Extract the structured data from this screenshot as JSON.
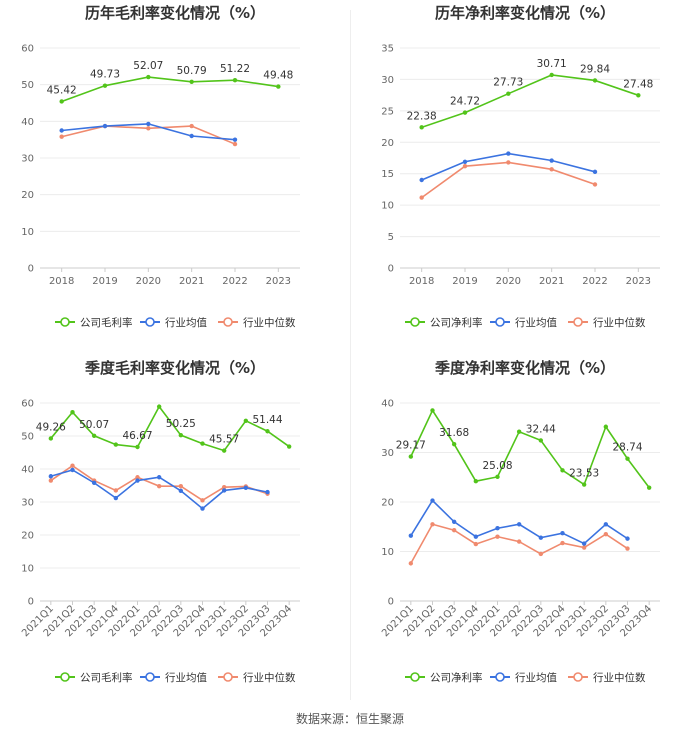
{
  "source_label": "数据来源：恒生聚源",
  "colors": {
    "company": "#52c41a",
    "avg": "#3b73e0",
    "median": "#f08a6e"
  },
  "chart_data": [
    {
      "type": "line",
      "title": "历年毛利率变化情况（%）",
      "categories": [
        "2018",
        "2019",
        "2020",
        "2021",
        "2022",
        "2023"
      ],
      "ylim": [
        0,
        60
      ],
      "yticks": [
        0,
        10,
        20,
        30,
        40,
        50,
        60
      ],
      "series": [
        {
          "name": "公司毛利率",
          "key": "company",
          "values": [
            45.42,
            49.73,
            52.07,
            50.79,
            51.22,
            49.48
          ]
        },
        {
          "name": "行业均值",
          "key": "avg",
          "values": [
            37.5,
            38.7,
            39.3,
            36.0,
            35.0,
            null
          ]
        },
        {
          "name": "行业中位数",
          "key": "median",
          "values": [
            35.8,
            38.7,
            38.1,
            38.7,
            33.8,
            null
          ]
        }
      ],
      "data_labels": [
        "45.42",
        "49.73",
        "52.07",
        "50.79",
        "51.22",
        "49.48"
      ]
    },
    {
      "type": "line",
      "title": "历年净利率变化情况（%）",
      "categories": [
        "2018",
        "2019",
        "2020",
        "2021",
        "2022",
        "2023"
      ],
      "ylim": [
        0,
        35
      ],
      "yticks": [
        0,
        5,
        10,
        15,
        20,
        25,
        30,
        35
      ],
      "series": [
        {
          "name": "公司净利率",
          "key": "company",
          "values": [
            22.38,
            24.72,
            27.73,
            30.71,
            29.84,
            27.48
          ]
        },
        {
          "name": "行业均值",
          "key": "avg",
          "values": [
            14.0,
            16.9,
            18.2,
            17.1,
            15.3,
            null
          ]
        },
        {
          "name": "行业中位数",
          "key": "median",
          "values": [
            11.2,
            16.2,
            16.8,
            15.7,
            13.3,
            null
          ]
        }
      ],
      "data_labels": [
        "22.38",
        "24.72",
        "27.73",
        "30.71",
        "29.84",
        "27.48"
      ]
    },
    {
      "type": "line",
      "title": "季度毛利率变化情况（%）",
      "categories": [
        "2021Q1",
        "2021Q2",
        "2021Q3",
        "2021Q4",
        "2022Q1",
        "2022Q2",
        "2022Q3",
        "2022Q4",
        "2023Q1",
        "2023Q2",
        "2023Q3",
        "2023Q4"
      ],
      "ylim": [
        0,
        60
      ],
      "yticks": [
        0,
        10,
        20,
        30,
        40,
        50,
        60
      ],
      "series": [
        {
          "name": "公司毛利率",
          "key": "company",
          "values": [
            49.26,
            57.2,
            50.07,
            47.4,
            46.67,
            58.9,
            50.25,
            47.7,
            45.57,
            54.6,
            51.44,
            46.8
          ]
        },
        {
          "name": "行业均值",
          "key": "avg",
          "values": [
            37.8,
            39.7,
            35.8,
            31.2,
            36.5,
            37.5,
            33.4,
            28.0,
            33.5,
            34.3,
            33.0,
            null
          ]
        },
        {
          "name": "行业中位数",
          "key": "median",
          "values": [
            36.5,
            41.0,
            36.5,
            33.5,
            37.5,
            34.8,
            34.8,
            30.5,
            34.5,
            34.7,
            32.5,
            null
          ]
        }
      ],
      "data_labels": [
        "49.26",
        "",
        "50.07",
        "",
        "46.67",
        "",
        "50.25",
        "",
        "45.57",
        "",
        "51.44",
        ""
      ]
    },
    {
      "type": "line",
      "title": "季度净利率变化情况（%）",
      "categories": [
        "2021Q1",
        "2021Q2",
        "2021Q3",
        "2021Q4",
        "2022Q1",
        "2022Q2",
        "2022Q3",
        "2022Q4",
        "2023Q1",
        "2023Q2",
        "2023Q3",
        "2023Q4"
      ],
      "ylim": [
        0,
        40
      ],
      "yticks": [
        0,
        10,
        20,
        30,
        40
      ],
      "series": [
        {
          "name": "公司净利率",
          "key": "company",
          "values": [
            29.17,
            38.5,
            31.68,
            24.2,
            25.08,
            34.2,
            32.44,
            26.4,
            23.53,
            35.2,
            28.74,
            22.9
          ]
        },
        {
          "name": "行业均值",
          "key": "avg",
          "values": [
            13.2,
            20.3,
            16.0,
            13.0,
            14.7,
            15.5,
            12.8,
            13.7,
            11.6,
            15.5,
            12.6,
            null
          ]
        },
        {
          "name": "行业中位数",
          "key": "median",
          "values": [
            7.6,
            15.5,
            14.3,
            11.5,
            13.0,
            12.0,
            9.5,
            11.7,
            10.8,
            13.5,
            10.6,
            null
          ]
        }
      ],
      "data_labels": [
        "29.17",
        "",
        "31.68",
        "",
        "25.08",
        "",
        "32.44",
        "",
        "23.53",
        "",
        "28.74",
        ""
      ]
    }
  ]
}
